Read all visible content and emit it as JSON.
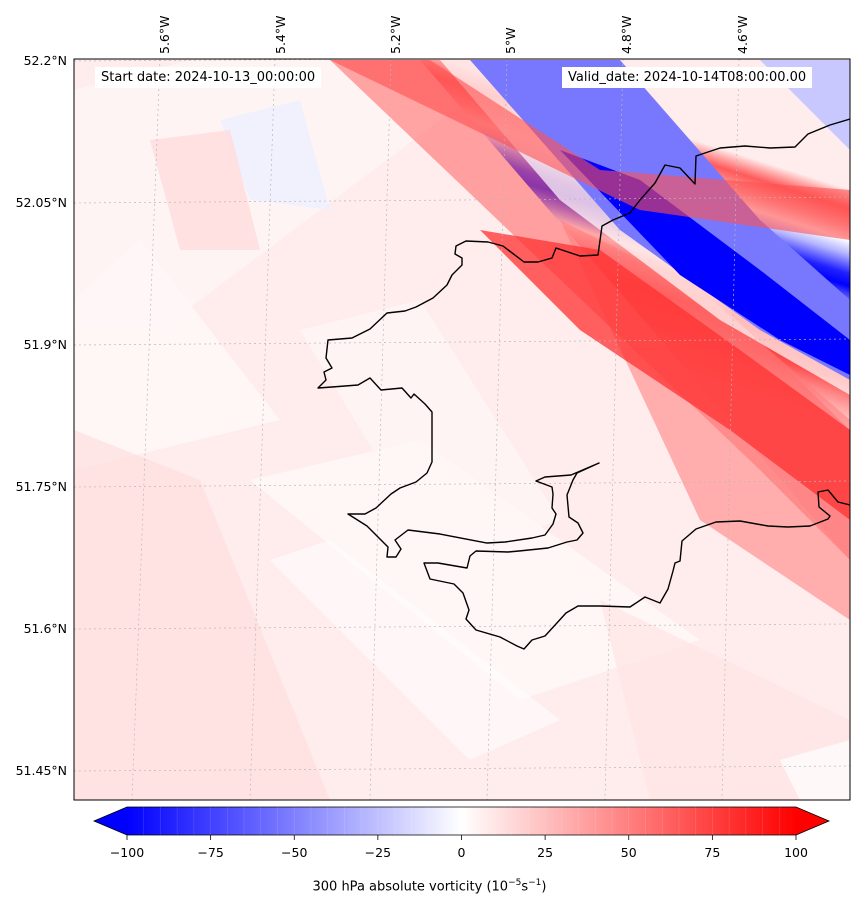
{
  "map": {
    "start_label": "Start date: 2024-10-13_00:00:00",
    "valid_label": "Valid_date: 2024-10-14T08:00:00.00",
    "lon_labels": [
      "5.6°W",
      "5.4°W",
      "5.2°W",
      "5°W",
      "4.8°W",
      "4.6°W"
    ],
    "lat_labels": [
      "52.2°N",
      "52.05°N",
      "51.9°N",
      "51.75°N",
      "51.6°N",
      "51.45°N"
    ],
    "coastline_color": "#000000",
    "field": "300 hPa absolute vorticity",
    "region": "Pembrokeshire, southwest Wales"
  },
  "colorbar": {
    "ticks": [
      "−100",
      "−75",
      "−50",
      "−25",
      "0",
      "25",
      "50",
      "75",
      "100"
    ],
    "label_main": "300 hPa absolute vorticity (10",
    "label_exp1": "−5",
    "label_mid": "s",
    "label_exp2": "−1",
    "label_end": ")",
    "min": -100,
    "max": 100,
    "cmap": "bwr",
    "negative_color": "#0000ff",
    "zero_color": "#ffffff",
    "positive_color": "#ff0000"
  }
}
